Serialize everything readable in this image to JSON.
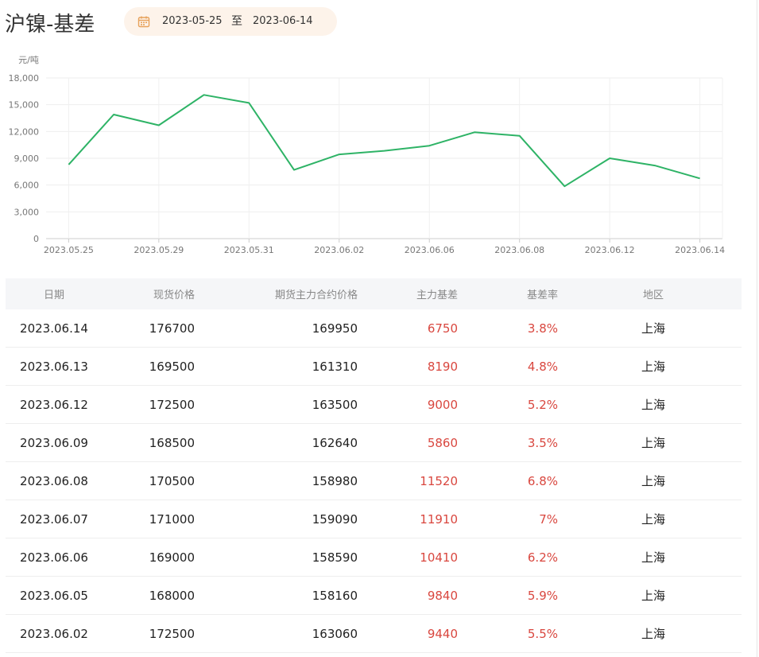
{
  "page_title": "沪镍-基差",
  "date_range": {
    "start": "2023-05-25",
    "separator": "至",
    "end": "2023-06-14"
  },
  "colors": {
    "line": "#2eb366",
    "positive": "#d9473f",
    "picker_bg": "#fdf3ea",
    "calendar_icon": "#e7a15a"
  },
  "icons": {
    "date_picker": "calendar-icon"
  },
  "chart_data": {
    "type": "line",
    "ylabel": "元/吨",
    "ylim": [
      0,
      18000
    ],
    "yticks": [
      "0",
      "3,000",
      "6,000",
      "9,000",
      "12,000",
      "15,000",
      "18,000"
    ],
    "xtick_labels": [
      "2023.05.25",
      "2023.05.29",
      "2023.05.31",
      "2023.06.02",
      "2023.06.06",
      "2023.06.08",
      "2023.06.12",
      "2023.06.14"
    ],
    "x": [
      "2023.05.25",
      "2023.05.26",
      "2023.05.29",
      "2023.05.30",
      "2023.05.31",
      "2023.06.01",
      "2023.06.02",
      "2023.06.05",
      "2023.06.06",
      "2023.06.07",
      "2023.06.08",
      "2023.06.09",
      "2023.06.12",
      "2023.06.13",
      "2023.06.14"
    ],
    "series": [
      {
        "values": [
          8300,
          13900,
          12700,
          16100,
          15200,
          7700,
          9440,
          9840,
          10410,
          11910,
          11520,
          5860,
          9000,
          8190,
          6750
        ]
      }
    ],
    "grid": true
  },
  "table": {
    "columns": [
      "日期",
      "现货价格",
      "期货主力合约价格",
      "主力基差",
      "基差率",
      "地区"
    ],
    "rows": [
      [
        "2023.06.14",
        "176700",
        "169950",
        "6750",
        "3.8%",
        "上海"
      ],
      [
        "2023.06.13",
        "169500",
        "161310",
        "8190",
        "4.8%",
        "上海"
      ],
      [
        "2023.06.12",
        "172500",
        "163500",
        "9000",
        "5.2%",
        "上海"
      ],
      [
        "2023.06.09",
        "168500",
        "162640",
        "5860",
        "3.5%",
        "上海"
      ],
      [
        "2023.06.08",
        "170500",
        "158980",
        "11520",
        "6.8%",
        "上海"
      ],
      [
        "2023.06.07",
        "171000",
        "159090",
        "11910",
        "7%",
        "上海"
      ],
      [
        "2023.06.06",
        "169000",
        "158590",
        "10410",
        "6.2%",
        "上海"
      ],
      [
        "2023.06.05",
        "168000",
        "158160",
        "9840",
        "5.9%",
        "上海"
      ],
      [
        "2023.06.02",
        "172500",
        "163060",
        "9440",
        "5.5%",
        "上海"
      ]
    ]
  }
}
